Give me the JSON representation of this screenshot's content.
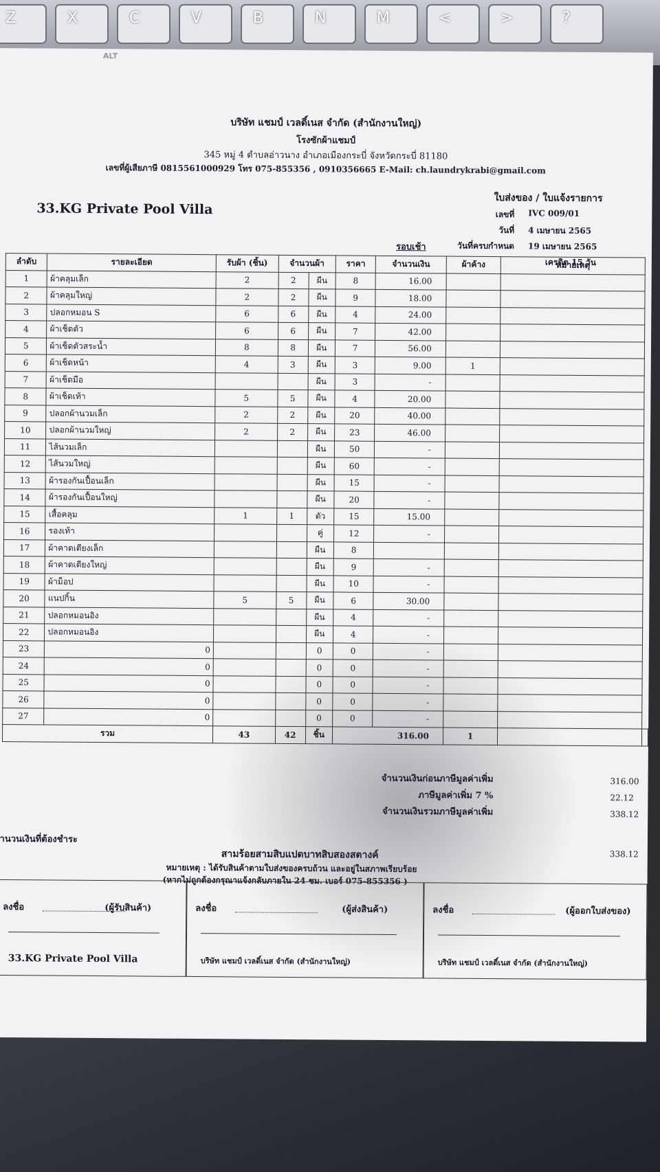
{
  "keyboard": {
    "keys": [
      "Z",
      "X",
      "C",
      "V",
      "B",
      "N",
      "M",
      "<",
      ">",
      "?"
    ],
    "alt": "ALT"
  },
  "header": {
    "company": "บริษัท แชมป์ เวลดิ์เนส จำกัด (สำนักงานใหญ่)",
    "subtitle": "โรงซักผ้าแชมป์",
    "address": "345 หมู่ 4 ตำบลอ่าวนาง อำเภอเมืองกระบี่ จังหวัดกระบี่ 81180",
    "contact": "เลขที่ผู้เสียภาษี 0815561000929 โทร 075-855356 , 0910356665  E-Mail: ch.laundrykrabi@gmail.com"
  },
  "customer": "33.KG Private Pool Villa",
  "doc_type": "ใบส่งของ / ใบแจ้งรายการ",
  "meta": [
    {
      "label": "เลขที่",
      "value": "IVC 009/01"
    },
    {
      "label": "วันที่",
      "value": "4 เมษายน 2565"
    },
    {
      "label": "วันที่ครบกำหนด",
      "value": "19 เมษายน 2565"
    },
    {
      "label": null,
      "value": "เครดิต 15 วัน"
    }
  ],
  "table": {
    "round": "รอบเช้า",
    "columns": [
      "ลำดับ",
      "รายละเอียด",
      "รับผ้า (ชิ้น)",
      "จำนวนผ้า",
      "ราคา",
      "จำนวนเงิน",
      "ผ้าค้าง",
      "หมายเหตุ"
    ],
    "rows": [
      [
        "1",
        "ผ้าคลุมเล็ก",
        "2",
        "2",
        "ผืน",
        "8",
        "16.00",
        null
      ],
      [
        "2",
        "ผ้าคลุมใหญ่",
        "2",
        "2",
        "ผืน",
        "9",
        "18.00",
        null
      ],
      [
        "3",
        "ปลอกหมอน S",
        "6",
        "6",
        "ผืน",
        "4",
        "24.00",
        null
      ],
      [
        "4",
        "ผ้าเช็ดตัว",
        "6",
        "6",
        "ผืน",
        "7",
        "42.00",
        null
      ],
      [
        "5",
        "ผ้าเช็ดตัวสระน้ำ",
        "8",
        "8",
        "ผืน",
        "7",
        "56.00",
        null
      ],
      [
        "6",
        "ผ้าเช็ดหน้า",
        "4",
        "3",
        "ผืน",
        "3",
        "9.00",
        "1"
      ],
      [
        "7",
        "ผ้าเช็ดมือ",
        null,
        null,
        "ผืน",
        "3",
        "-",
        null
      ],
      [
        "8",
        "ผ้าเช็ดเท้า",
        "5",
        "5",
        "ผืน",
        "4",
        "20.00",
        null
      ],
      [
        "9",
        "ปลอกผ้านวมเล็ก",
        "2",
        "2",
        "ผืน",
        "20",
        "40.00",
        null
      ],
      [
        "10",
        "ปลอกผ้านวมใหญ่",
        "2",
        "2",
        "ผืน",
        "23",
        "46.00",
        null
      ],
      [
        "11",
        "ไส้นวมเล็ก",
        null,
        null,
        "ผืน",
        "50",
        "-",
        null
      ],
      [
        "12",
        "ไส้นวมใหญ่",
        null,
        null,
        "ผืน",
        "60",
        "-",
        null
      ],
      [
        "13",
        "ผ้ารองกันเปื้อนเล็ก",
        null,
        null,
        "ผืน",
        "15",
        "-",
        null
      ],
      [
        "14",
        "ผ้ารองกันเปื้อนใหญ่",
        null,
        null,
        "ผืน",
        "20",
        "-",
        null
      ],
      [
        "15",
        "เสื้อคลุม",
        "1",
        "1",
        "ตัว",
        "15",
        "15.00",
        null
      ],
      [
        "16",
        "รองเท้า",
        null,
        null,
        "คู่",
        "12",
        "-",
        null
      ],
      [
        "17",
        "ผ้าคาดเตียงเล็ก",
        null,
        null,
        "ผืน",
        "8",
        null,
        null
      ],
      [
        "18",
        "ผ้าคาดเตียงใหญ่",
        null,
        null,
        "ผืน",
        "9",
        "-",
        null
      ],
      [
        "19",
        "ผ้าม็อป",
        null,
        null,
        "ผืน",
        "10",
        "-",
        null
      ],
      [
        "20",
        "แนปกิ้น",
        "5",
        "5",
        "ผืน",
        "6",
        "30.00",
        null
      ],
      [
        "21",
        "ปลอกหมอนอิง",
        null,
        null,
        "ผืน",
        "4",
        "-",
        null
      ],
      [
        "22",
        "ปลอกหมอนอิง",
        null,
        null,
        "ผืน",
        "4",
        "-",
        null
      ],
      [
        "23",
        "0",
        null,
        null,
        "0",
        "0",
        "-",
        null
      ],
      [
        "24",
        "0",
        null,
        null,
        "0",
        "0",
        "-",
        null
      ],
      [
        "25",
        "0",
        null,
        null,
        "0",
        "0",
        "-",
        null
      ],
      [
        "26",
        "0",
        null,
        null,
        "0",
        "0",
        "-",
        null
      ],
      [
        "27",
        "0",
        null,
        null,
        "0",
        "0",
        "-",
        null
      ]
    ],
    "total": [
      "รวม",
      "43",
      "42",
      "ชิ้น",
      "316.00",
      "1"
    ]
  },
  "summary": [
    {
      "label": "จำนวนเงินก่อนภาษีมูลค่าเพิ่ม",
      "value": "316.00"
    },
    {
      "label": "ภาษีมูลค่าเพิ่ม 7 %",
      "value": "22.12"
    },
    {
      "label": "จำนวนเงินรวมภาษีมูลค่าเพิ่ม",
      "value": "338.12"
    }
  ],
  "payable": {
    "label": "จำนวนเงินที่ต้องชำระ",
    "words": "สามร้อยสามสิบแปดบาทสิบสองสตางค์",
    "value": "338.12"
  },
  "notes": [
    "หมายเหตุ : ได้รับสินค้าตามใบส่งของครบถ้วน และอยู่ในสภาพเรียบร้อย",
    "(หากไม่ถูกต้องกรุณาแจ้งกลับภายใน 24 ชม. เบอร์ 075-855356 )"
  ],
  "signatures": [
    {
      "sign": "ลงชื่อ",
      "role": "(ผู้รับสินค้า)",
      "org": "33.KG Private Pool Villa"
    },
    {
      "sign": "ลงชื่อ",
      "role": "(ผู้ส่งสินค้า)",
      "org": "บริษัท แชมป์ เวลดิ์เนส จำกัด (สำนักงานใหญ่)"
    },
    {
      "sign": "ลงชื่อ",
      "role": "(ผู้ออกใบส่งของ)",
      "org": "บริษัท แชมป์ เวลดิ์เนส จำกัด (สำนักงานใหญ่)"
    }
  ]
}
